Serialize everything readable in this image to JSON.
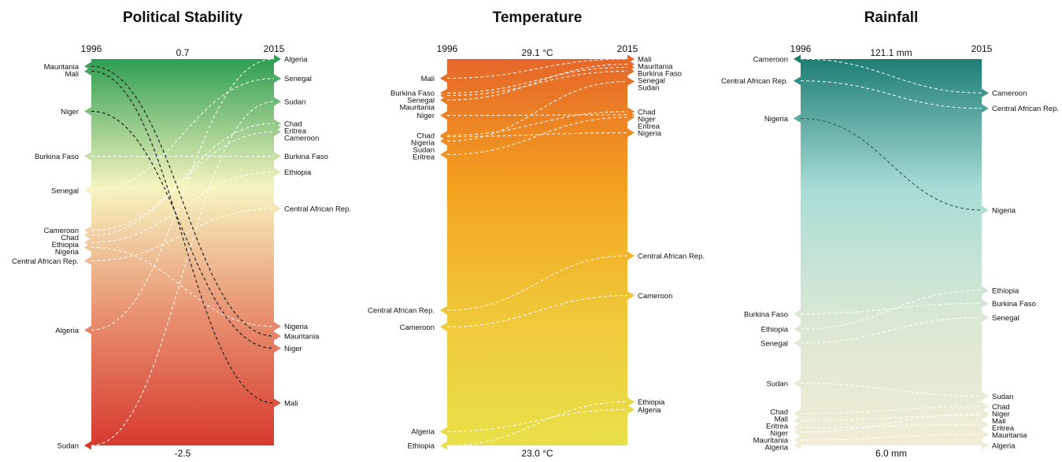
{
  "chart_data": [
    {
      "type": "slope",
      "title": "Political Stability",
      "x": [
        "1996",
        "2015"
      ],
      "max_label": "0.7",
      "min_label": "-2.5",
      "gradient": [
        "#2e9e52",
        "#f7f5c0",
        "#e89070",
        "#d63a2e"
      ],
      "highlight_color": "#222222",
      "highlight": [
        "Mauritania",
        "Mali",
        "Niger"
      ],
      "series": [
        {
          "name": "Mauritania",
          "values": [
            0.62,
            -1.6
          ]
        },
        {
          "name": "Mali",
          "values": [
            0.58,
            -2.15
          ]
        },
        {
          "name": "Niger",
          "values": [
            0.25,
            -1.7
          ]
        },
        {
          "name": "Burkina Faso",
          "values": [
            -0.12,
            -0.12
          ]
        },
        {
          "name": "Senegal",
          "values": [
            -0.4,
            0.52
          ]
        },
        {
          "name": "Cameroon",
          "values": [
            -0.73,
            0.08
          ]
        },
        {
          "name": "Chad",
          "values": [
            -0.77,
            0.15
          ]
        },
        {
          "name": "Ethiopia",
          "values": [
            -0.83,
            -0.25
          ]
        },
        {
          "name": "Nigeria",
          "values": [
            -0.87,
            -1.52
          ]
        },
        {
          "name": "Central African Rep.",
          "values": [
            -0.98,
            -0.55
          ]
        },
        {
          "name": "Algeria",
          "values": [
            -1.55,
            0.68
          ]
        },
        {
          "name": "Sudan",
          "values": [
            -2.5,
            0.33
          ]
        },
        {
          "name": "Eritrea",
          "values": [
            null,
            0.12
          ]
        }
      ]
    },
    {
      "type": "slope",
      "title": "Temperature",
      "x": [
        "1996",
        "2015"
      ],
      "max_label": "29.1 °C",
      "min_label": "23.0 °C",
      "gradient": [
        "#e5672a",
        "#f3a21e",
        "#f0c83a",
        "#e8e04a"
      ],
      "highlight_color": "",
      "highlight": [],
      "series": [
        {
          "name": "Mali",
          "values": [
            28.75,
            29.05
          ]
        },
        {
          "name": "Burkina Faso",
          "values": [
            28.52,
            28.92
          ]
        },
        {
          "name": "Senegal",
          "values": [
            28.48,
            28.86
          ]
        },
        {
          "name": "Mauritania",
          "values": [
            28.41,
            28.97
          ]
        },
        {
          "name": "Niger",
          "values": [
            28.17,
            28.18
          ]
        },
        {
          "name": "Sudan",
          "values": [
            27.77,
            28.7
          ]
        },
        {
          "name": "Chad",
          "values": [
            27.86,
            28.23
          ]
        },
        {
          "name": "Nigeria",
          "values": [
            27.84,
            27.9
          ]
        },
        {
          "name": "Eritrea",
          "values": [
            27.56,
            28.14
          ]
        },
        {
          "name": "Central African Rep.",
          "values": [
            25.13,
            25.98
          ]
        },
        {
          "name": "Cameroon",
          "values": [
            24.87,
            25.36
          ]
        },
        {
          "name": "Algeria",
          "values": [
            23.24,
            23.58
          ]
        },
        {
          "name": "Ethiopia",
          "values": [
            23.02,
            23.7
          ]
        }
      ]
    },
    {
      "type": "slope",
      "title": "Rainfall",
      "x": [
        "1996",
        "2015"
      ],
      "max_label": "121.1 mm",
      "min_label": "6.0 mm",
      "gradient": [
        "#1e7e74",
        "#a8dcd6",
        "#d9e8d4",
        "#f2ecd6"
      ],
      "highlight_color": "#3a5f5a",
      "highlight": [
        "Nigeria"
      ],
      "series": [
        {
          "name": "Cameroon",
          "values": [
            121.1,
            111.0
          ]
        },
        {
          "name": "Central African Rep.",
          "values": [
            114.6,
            106.4
          ]
        },
        {
          "name": "Nigeria",
          "values": [
            103.4,
            76.1
          ]
        },
        {
          "name": "Burkina Faso",
          "values": [
            45.2,
            48.3
          ]
        },
        {
          "name": "Ethiopia",
          "values": [
            40.7,
            52.2
          ]
        },
        {
          "name": "Senegal",
          "values": [
            36.5,
            44.1
          ]
        },
        {
          "name": "Sudan",
          "values": [
            24.5,
            20.7
          ]
        },
        {
          "name": "Chad",
          "values": [
            15.5,
            17.6
          ]
        },
        {
          "name": "Mali",
          "values": [
            13.4,
            15.0
          ]
        },
        {
          "name": "Eritrea",
          "values": [
            11.3,
            12.3
          ]
        },
        {
          "name": "Niger",
          "values": [
            10.0,
            15.5
          ]
        },
        {
          "name": "Mauritania",
          "values": [
            7.6,
            9.3
          ]
        },
        {
          "name": "Algeria",
          "values": [
            6.0,
            6.0
          ]
        }
      ]
    }
  ]
}
